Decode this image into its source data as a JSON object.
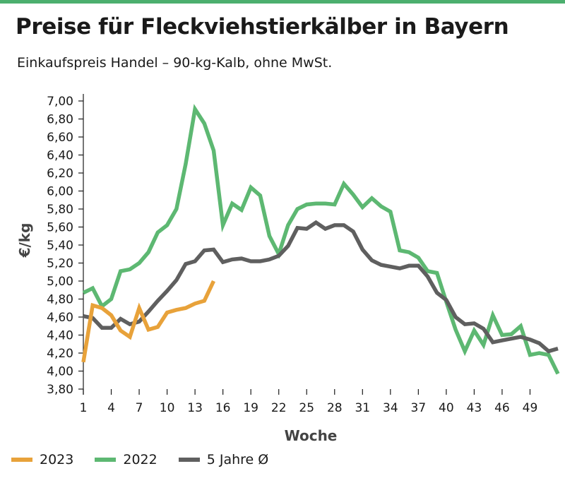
{
  "header": {
    "title": "Preise für Fleckviehstierkälber in Bayern",
    "subtitle": "Einkaufspreis Handel – 90-kg-Kalb, ohne MwSt."
  },
  "colors": {
    "accent_bar": "#4caf6e",
    "series_2023": "#e8a23a",
    "series_2022": "#5db872",
    "series_5y": "#5f5f5f"
  },
  "chart_data": {
    "type": "line",
    "xlabel": "Woche",
    "ylabel": "€/kg",
    "xlim": [
      1,
      52
    ],
    "ylim": [
      3.8,
      7.0
    ],
    "x_ticks": [
      "1",
      "4",
      "7",
      "10",
      "13",
      "16",
      "19",
      "22",
      "25",
      "28",
      "31",
      "34",
      "37",
      "40",
      "43",
      "46",
      "49"
    ],
    "y_ticks": [
      "3,80",
      "4,00",
      "4,20",
      "4,40",
      "4,60",
      "4,80",
      "5,00",
      "5,20",
      "5,40",
      "5,60",
      "5,80",
      "6,00",
      "6,20",
      "6,40",
      "6,60",
      "6,80",
      "7,00"
    ],
    "grid": false,
    "legend_position": "bottom-left",
    "series": [
      {
        "name": "2023",
        "color": "#e8a23a",
        "x": [
          1,
          2,
          3,
          4,
          5,
          6,
          7,
          8,
          9,
          10,
          11,
          12,
          13,
          14,
          15
        ],
        "y": [
          4.1,
          4.73,
          4.7,
          4.62,
          4.45,
          4.38,
          4.7,
          4.46,
          4.49,
          4.65,
          4.68,
          4.7,
          4.75,
          4.78,
          5.0
        ]
      },
      {
        "name": "2022",
        "color": "#5db872",
        "x": [
          1,
          2,
          3,
          4,
          5,
          6,
          7,
          8,
          9,
          10,
          11,
          12,
          13,
          14,
          15,
          16,
          17,
          18,
          19,
          20,
          21,
          22,
          23,
          24,
          25,
          26,
          27,
          28,
          29,
          30,
          31,
          32,
          33,
          34,
          35,
          36,
          37,
          38,
          39,
          40,
          41,
          42,
          43,
          44,
          45,
          46,
          47,
          48,
          49,
          50,
          51,
          52
        ],
        "y": [
          4.87,
          4.92,
          4.72,
          4.8,
          5.11,
          5.13,
          5.2,
          5.32,
          5.54,
          5.62,
          5.8,
          6.3,
          6.91,
          6.75,
          6.45,
          5.62,
          5.86,
          5.79,
          6.04,
          5.95,
          5.5,
          5.3,
          5.62,
          5.8,
          5.85,
          5.86,
          5.86,
          5.85,
          6.08,
          5.96,
          5.82,
          5.92,
          5.83,
          5.77,
          5.34,
          5.32,
          5.26,
          5.11,
          5.09,
          4.77,
          4.46,
          4.22,
          4.45,
          4.29,
          4.62,
          4.4,
          4.41,
          4.5,
          4.18,
          4.2,
          4.18,
          3.97
        ]
      },
      {
        "name": "5 Jahre Ø",
        "color": "#5f5f5f",
        "x": [
          1,
          2,
          3,
          4,
          5,
          6,
          7,
          8,
          9,
          10,
          11,
          12,
          13,
          14,
          15,
          16,
          17,
          18,
          19,
          20,
          21,
          22,
          23,
          24,
          25,
          26,
          27,
          28,
          29,
          30,
          31,
          32,
          33,
          34,
          35,
          36,
          37,
          38,
          39,
          40,
          41,
          42,
          43,
          44,
          45,
          46,
          47,
          48,
          49,
          50,
          51,
          52
        ],
        "y": [
          4.61,
          4.59,
          4.48,
          4.48,
          4.58,
          4.52,
          4.55,
          4.66,
          4.78,
          4.89,
          5.01,
          5.19,
          5.22,
          5.34,
          5.35,
          5.21,
          5.24,
          5.25,
          5.22,
          5.22,
          5.24,
          5.28,
          5.39,
          5.59,
          5.58,
          5.65,
          5.58,
          5.62,
          5.62,
          5.55,
          5.35,
          5.23,
          5.18,
          5.16,
          5.14,
          5.17,
          5.17,
          5.05,
          4.87,
          4.79,
          4.6,
          4.52,
          4.53,
          4.47,
          4.32,
          4.34,
          4.36,
          4.38,
          4.35,
          4.31,
          4.22,
          4.25
        ]
      }
    ]
  }
}
